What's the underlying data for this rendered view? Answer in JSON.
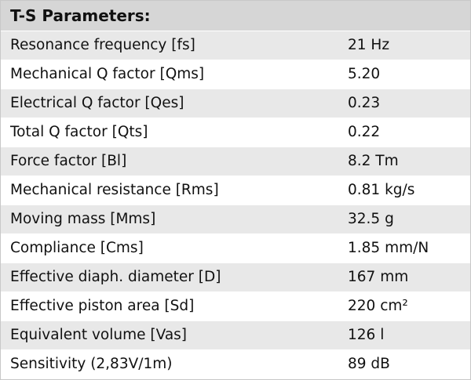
{
  "header": {
    "title": "T-S Parameters:"
  },
  "table": {
    "rows": [
      [
        "Resonance frequency [fs]",
        "21 Hz"
      ],
      [
        "Mechanical Q factor [Qms]",
        "5.20"
      ],
      [
        "Electrical Q factor [Qes]",
        "0.23"
      ],
      [
        "Total Q factor [Qts]",
        "0.22"
      ],
      [
        "Force factor [Bl]",
        "8.2 Tm"
      ],
      [
        "Mechanical resistance [Rms]",
        "0.81 kg/s"
      ],
      [
        "Moving mass [Mms]",
        "32.5 g"
      ],
      [
        "Compliance [Cms]",
        "1.85 mm/N"
      ],
      [
        "Effective diaph. diameter [D]",
        "167 mm"
      ],
      [
        "Effective piston area [Sd]",
        "220 cm²"
      ],
      [
        "Equivalent volume [Vas]",
        "126 l"
      ],
      [
        "Sensitivity (2,83V/1m)",
        "89 dB"
      ]
    ]
  }
}
